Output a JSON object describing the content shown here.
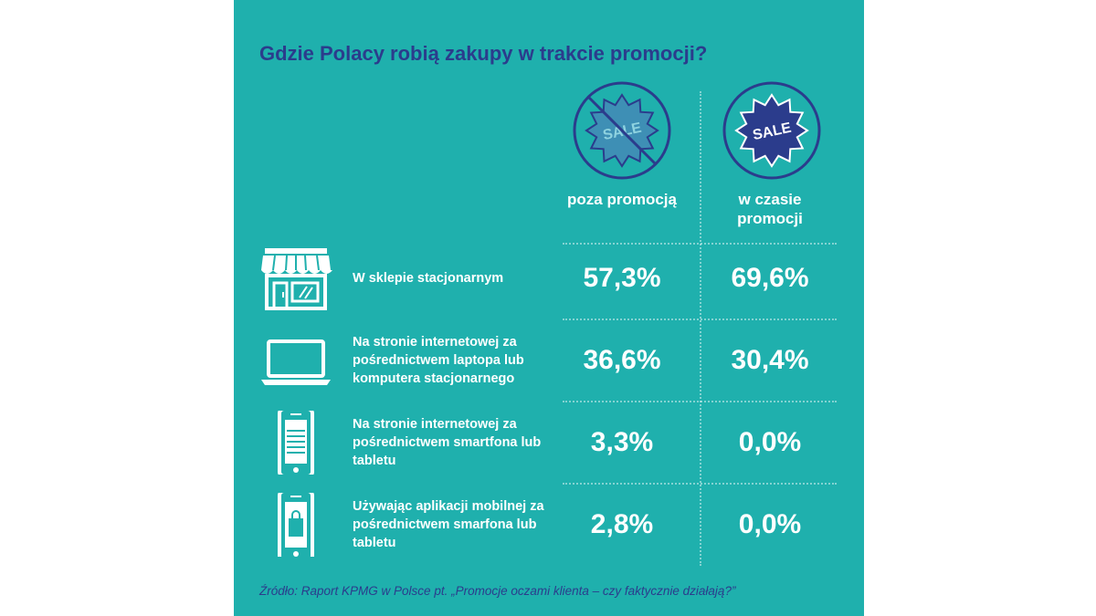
{
  "title": "Gdzie Polacy robią zakupy w trakcie promocji?",
  "badge_text": "SALE",
  "columns": {
    "off": "poza promocją",
    "on": "w czasie promocji"
  },
  "rows": [
    {
      "icon": "storefront-icon",
      "label": "W sklepie stacjonarnym",
      "off": "57,3%",
      "on": "69,6%"
    },
    {
      "icon": "laptop-icon",
      "label": "Na stronie internetowej za pośrednictwem laptopa lub komputera stacjonarnego",
      "off": "36,6%",
      "on": "30,4%"
    },
    {
      "icon": "smartphone-icon",
      "label": "Na stronie internetowej za pośrednictwem smartfona lub tabletu",
      "off": "3,3%",
      "on": "0,0%"
    },
    {
      "icon": "mobile-shopping-app-icon",
      "label": "Używając aplikacji mobilnej za pośrednictwem smarfona lub tabletu",
      "off": "2,8%",
      "on": "0,0%"
    }
  ],
  "source": "Źródło: Raport KPMG w Polsce pt. „Promocje oczami klienta – czy faktycznie działają?”",
  "colors": {
    "background": "#1fb0ad",
    "title": "#2b3c8c",
    "badge_fill": "#3e8fb5",
    "badge_fill_strong": "#2b3c8c",
    "text": "#ffffff"
  }
}
